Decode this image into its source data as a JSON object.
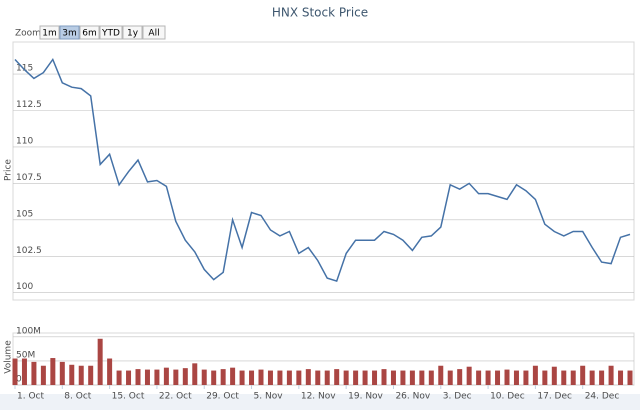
{
  "range_selector": {
    "label": "Zoom",
    "buttons": [
      "1m",
      "3m",
      "6m",
      "YTD",
      "1y",
      "All"
    ],
    "selected": 1
  },
  "chart_data": [
    {
      "type": "line",
      "title": "HNX Stock Price",
      "ylabel": "Price",
      "color": "#4572a7",
      "grid": true,
      "ylim": [
        99.5,
        117.2
      ],
      "yticks": [
        100,
        102.5,
        105,
        107.5,
        110,
        112.5,
        115
      ],
      "values": [
        116.0,
        115.3,
        114.7,
        115.1,
        116.0,
        114.4,
        114.1,
        114.0,
        113.5,
        108.8,
        109.5,
        107.4,
        108.3,
        109.1,
        107.6,
        107.7,
        107.3,
        104.9,
        103.6,
        102.8,
        101.6,
        100.9,
        101.4,
        105.0,
        103.1,
        105.5,
        105.3,
        104.3,
        103.9,
        104.2,
        102.7,
        103.1,
        102.2,
        101.0,
        100.8,
        102.7,
        103.6,
        103.6,
        103.6,
        104.2,
        104.0,
        103.6,
        102.9,
        103.8,
        103.9,
        104.5,
        107.4,
        107.1,
        107.5,
        106.8,
        106.8,
        106.6,
        106.4,
        107.4,
        107.0,
        106.4,
        104.7,
        104.2,
        103.9,
        104.2,
        104.2,
        103.1,
        102.1,
        102.0,
        103.8,
        104.0
      ]
    },
    {
      "type": "bar",
      "ylabel": "Volume",
      "color": "#aa4643",
      "grid": true,
      "ylim": [
        0,
        108000000
      ],
      "yticks": [
        0,
        {
          "value": 50000000,
          "label": "50M"
        },
        {
          "value": 100000000,
          "label": "100M"
        }
      ],
      "categories": [
        "1. Oct",
        null,
        null,
        null,
        null,
        "8. Oct",
        null,
        null,
        null,
        null,
        "15. Oct",
        null,
        null,
        null,
        null,
        "22. Oct",
        null,
        null,
        null,
        null,
        "29. Oct",
        null,
        null,
        null,
        null,
        "5. Nov",
        null,
        null,
        null,
        null,
        "12. Nov",
        null,
        null,
        null,
        null,
        "19. Nov",
        null,
        null,
        null,
        null,
        "26. Nov",
        null,
        null,
        null,
        null,
        "3. Dec",
        null,
        null,
        null,
        null,
        "10. Dec",
        null,
        null,
        null,
        null,
        "17. Dec",
        null,
        null,
        null,
        null,
        "24. Dec",
        null,
        null,
        null,
        null,
        null
      ],
      "values": [
        55000000,
        55000000,
        48000000,
        40000000,
        56000000,
        48000000,
        42000000,
        40000000,
        40000000,
        96000000,
        55000000,
        30000000,
        30000000,
        33000000,
        32000000,
        32000000,
        36000000,
        32000000,
        35000000,
        45000000,
        32000000,
        30000000,
        33000000,
        36000000,
        30000000,
        30000000,
        32000000,
        30000000,
        30000000,
        30000000,
        30000000,
        33000000,
        30000000,
        30000000,
        33000000,
        30000000,
        30000000,
        30000000,
        30000000,
        33000000,
        30000000,
        30000000,
        30000000,
        30000000,
        30000000,
        40000000,
        30000000,
        33000000,
        38000000,
        30000000,
        30000000,
        30000000,
        32000000,
        30000000,
        30000000,
        40000000,
        30000000,
        38000000,
        30000000,
        30000000,
        40000000,
        30000000,
        30000000,
        40000000,
        30000000,
        30000000
      ]
    }
  ]
}
